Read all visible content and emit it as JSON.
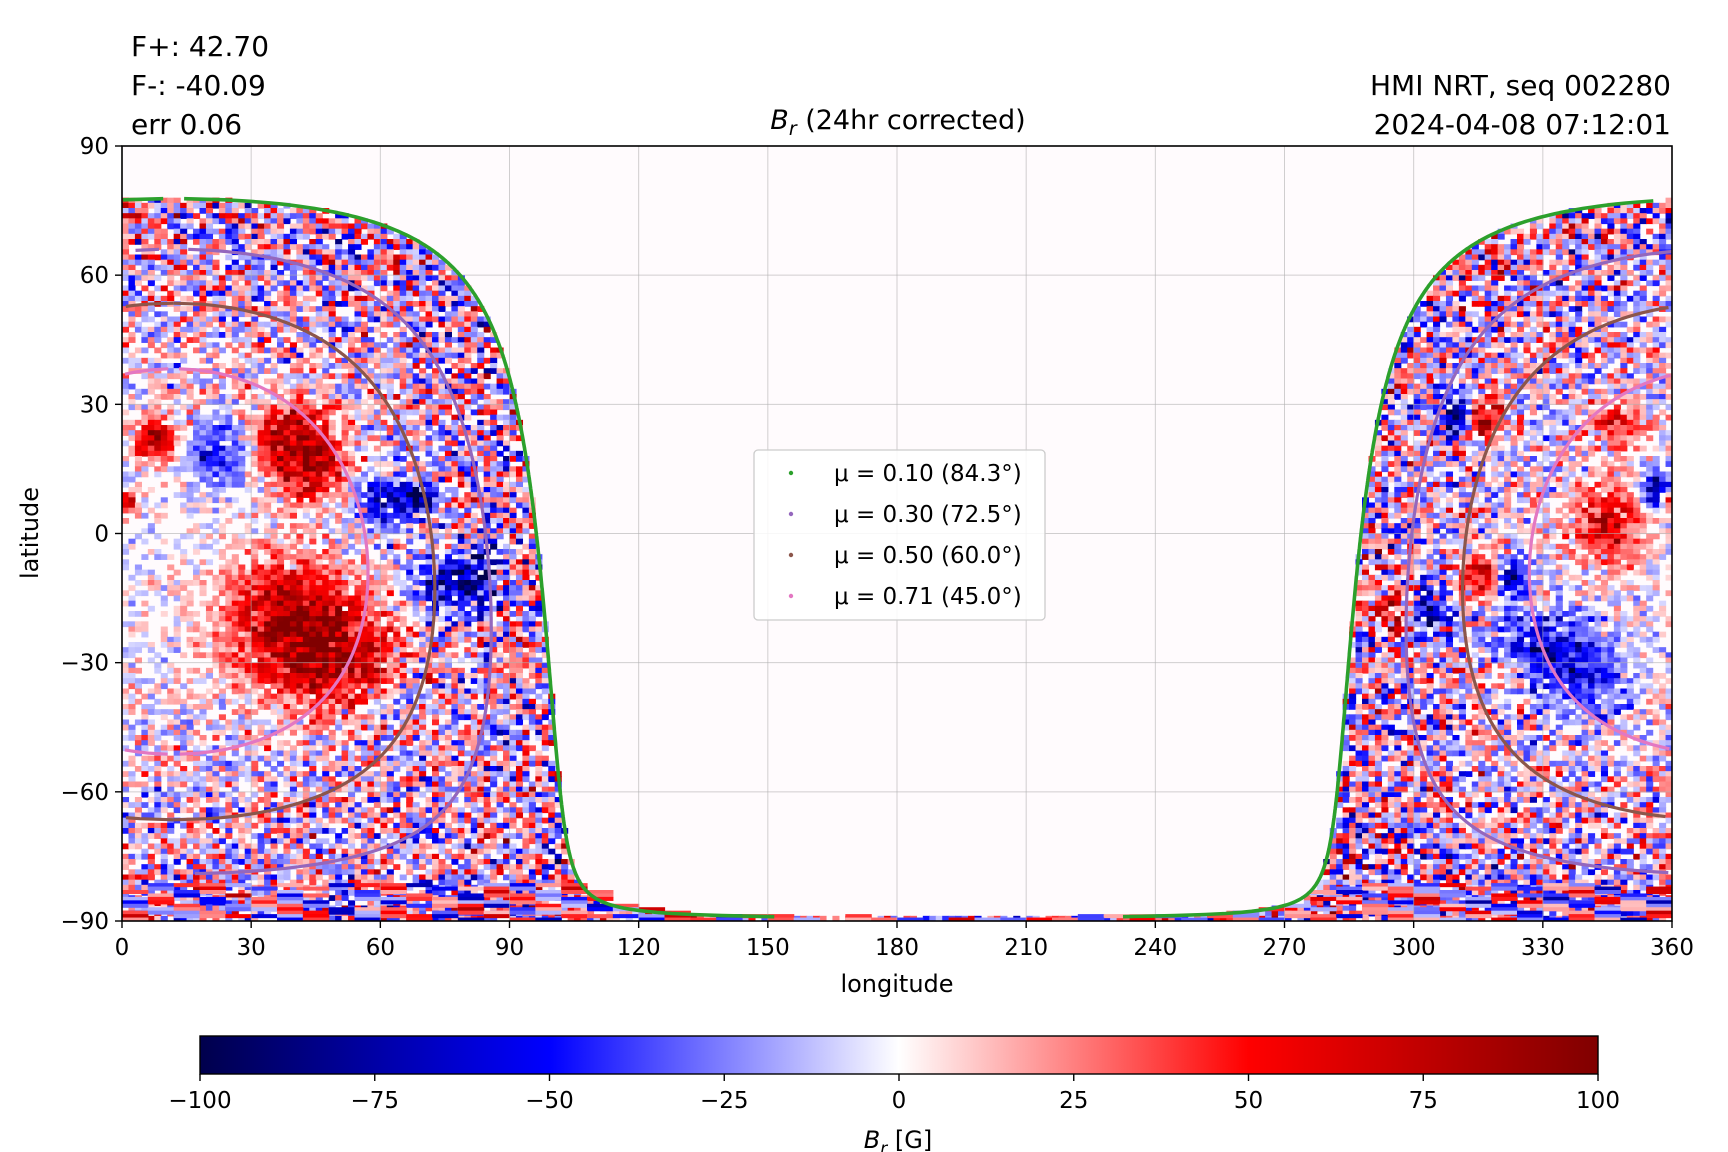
{
  "annotations": {
    "flux_plus": "F+: 42.70",
    "flux_minus": "F-: -40.09",
    "error": "err 0.06",
    "source": "HMI NRT, seq 002280",
    "timestamp": "2024-04-08 07:12:01"
  },
  "chart_data": {
    "type": "heatmap",
    "title_symbol": "B",
    "title_sub": "r",
    "title_rest": " (24hr corrected)",
    "xlabel": "longitude",
    "ylabel": "latitude",
    "xlim": [
      0,
      360
    ],
    "ylim": [
      -90,
      90
    ],
    "xticks": [
      0,
      30,
      60,
      90,
      120,
      150,
      180,
      210,
      240,
      270,
      300,
      330,
      360
    ],
    "yticks": [
      -90,
      -60,
      -30,
      0,
      30,
      60,
      90
    ],
    "xtick_labels": [
      "0",
      "30",
      "60",
      "90",
      "120",
      "150",
      "180",
      "210",
      "240",
      "270",
      "300",
      "330",
      "360"
    ],
    "ytick_labels": [
      "−90",
      "−60",
      "−30",
      "0",
      "30",
      "60",
      "90"
    ],
    "grid": true,
    "legend_position": "center",
    "disk_center_longitude": 12,
    "disk_center_latitude": -6.5,
    "series": [
      {
        "name": "μ = 0.10 (84.3°)",
        "mu": 0.1,
        "angle_deg": 84.3,
        "color": "#2ca02c"
      },
      {
        "name": "μ = 0.30 (72.5°)",
        "mu": 0.3,
        "angle_deg": 72.5,
        "color": "#9467bd"
      },
      {
        "name": "μ = 0.50 (60.0°)",
        "mu": 0.5,
        "angle_deg": 60.0,
        "color": "#8c564b"
      },
      {
        "name": "μ = 0.71 (45.0°)",
        "mu": 0.71,
        "angle_deg": 45.0,
        "color": "#e377c2"
      }
    ],
    "colorbar": {
      "label_symbol": "B",
      "label_sub": "r",
      "label_rest": " [G]",
      "range": [
        -100,
        100
      ],
      "ticks": [
        -100,
        -75,
        -50,
        -25,
        0,
        25,
        50,
        75,
        100
      ],
      "tick_labels": [
        "−100",
        "−75",
        "−50",
        "−25",
        "0",
        "25",
        "50",
        "75",
        "100"
      ],
      "colormap": "seismic"
    }
  }
}
